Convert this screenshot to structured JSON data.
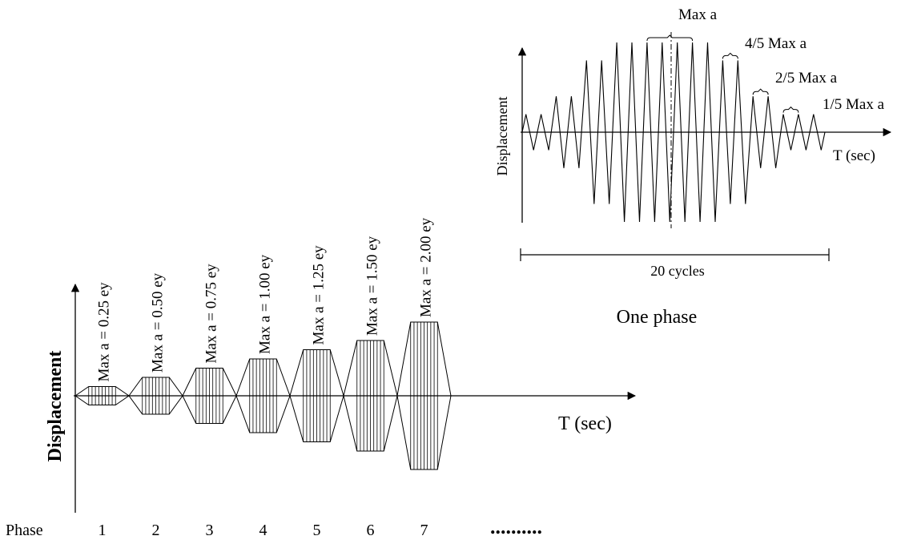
{
  "main": {
    "ylabel": "Displacement",
    "xlabel": "T (sec)",
    "row_label": "Phase",
    "ellipsis": "..........",
    "phases": [
      {
        "number": "1",
        "label": "Max a = 0.25 ey",
        "amp": 0.25
      },
      {
        "number": "2",
        "label": "Max a = 0.50 ey",
        "amp": 0.5
      },
      {
        "number": "3",
        "label": "Max a = 0.75 ey",
        "amp": 0.75
      },
      {
        "number": "4",
        "label": "Max a = 1.00 ey",
        "amp": 1.0
      },
      {
        "number": "5",
        "label": "Max a = 1.25 ey",
        "amp": 1.25
      },
      {
        "number": "6",
        "label": "Max a = 1.50 ey",
        "amp": 1.5
      },
      {
        "number": "7",
        "label": "Max a = 2.00 ey",
        "amp": 2.0
      }
    ]
  },
  "inset": {
    "ylabel": "Displacement",
    "xlabel": "T (sec)",
    "cycles_label": "20 cycles",
    "caption": "One phase",
    "level_labels": [
      "Max a",
      "4/5 Max a",
      "2/5 Max a",
      "1/5 Max a"
    ],
    "cycle_amplitudes": [
      0.2,
      0.2,
      0.4,
      0.4,
      0.8,
      0.8,
      1.0,
      1.0,
      1.0,
      1.0,
      1.0,
      1.0,
      1.0,
      0.8,
      0.8,
      0.4,
      0.4,
      0.2,
      0.2,
      0.2
    ]
  }
}
